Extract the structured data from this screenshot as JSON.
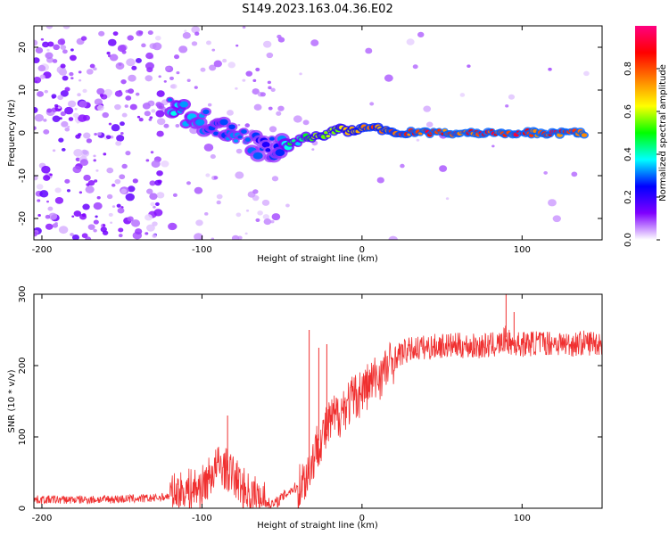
{
  "title": "S149.2023.163.04.36.E02",
  "chart_data": [
    {
      "type": "heatmap",
      "xlabel": "Height of straight line (km)",
      "ylabel": "Frequency (Hz)",
      "xlim": [
        -205,
        150
      ],
      "ylim": [
        -25,
        25
      ],
      "x_ticks": [
        -200,
        -100,
        0,
        100
      ],
      "y_ticks": [
        -20,
        -10,
        0,
        10,
        20
      ],
      "grid": false,
      "colorbar": {
        "label": "Normalized spectral amplitude",
        "range": [
          0,
          1
        ],
        "ticks": [
          0.0,
          0.2,
          0.4,
          0.6,
          0.8
        ],
        "colormap": [
          "#ffffff",
          "#7f00ff",
          "#0000ff",
          "#00ffff",
          "#00ff00",
          "#ffff00",
          "#ff8000",
          "#ff0000",
          "#ff0080"
        ]
      },
      "ridge_points": [
        {
          "x": -120,
          "y": 6,
          "amp": 0.35
        },
        {
          "x": -110,
          "y": 4,
          "amp": 0.35
        },
        {
          "x": -100,
          "y": 3,
          "amp": 0.3
        },
        {
          "x": -90,
          "y": 1,
          "amp": 0.3
        },
        {
          "x": -80,
          "y": 0,
          "amp": 0.3
        },
        {
          "x": -70,
          "y": -2,
          "amp": 0.3
        },
        {
          "x": -60,
          "y": -4,
          "amp": 0.25
        },
        {
          "x": -50,
          "y": -3,
          "amp": 0.3
        },
        {
          "x": -45,
          "y": -2,
          "amp": 0.45
        },
        {
          "x": -40,
          "y": -2,
          "amp": 0.4
        },
        {
          "x": -35,
          "y": -1,
          "amp": 0.45
        },
        {
          "x": -30,
          "y": -1,
          "amp": 0.55
        },
        {
          "x": -25,
          "y": -1,
          "amp": 0.6
        },
        {
          "x": -20,
          "y": 0,
          "amp": 0.6
        },
        {
          "x": -15,
          "y": 1,
          "amp": 0.6
        },
        {
          "x": -10,
          "y": 0.5,
          "amp": 0.65
        },
        {
          "x": -5,
          "y": 0.5,
          "amp": 0.7
        },
        {
          "x": 0,
          "y": 1,
          "amp": 0.75
        },
        {
          "x": 5,
          "y": 1,
          "amp": 0.8
        },
        {
          "x": 10,
          "y": 1,
          "amp": 0.75
        },
        {
          "x": 20,
          "y": 0,
          "amp": 0.8
        },
        {
          "x": 40,
          "y": 0,
          "amp": 0.85
        },
        {
          "x": 60,
          "y": 0,
          "amp": 0.85
        },
        {
          "x": 80,
          "y": 0,
          "amp": 0.85
        },
        {
          "x": 100,
          "y": 0,
          "amp": 0.85
        },
        {
          "x": 120,
          "y": 0,
          "amp": 0.85
        },
        {
          "x": 140,
          "y": 0,
          "amp": 0.85
        }
      ]
    },
    {
      "type": "line",
      "xlabel": "Height of straight line (km)",
      "ylabel": "SNR (10 * v/v)",
      "xlim": [
        -205,
        150
      ],
      "ylim": [
        0,
        300
      ],
      "x_ticks": [
        -200,
        -100,
        0,
        100
      ],
      "y_ticks": [
        0,
        100,
        200,
        300
      ],
      "grid": false,
      "series": [
        {
          "color": "#f03030",
          "x": [
            -205,
            -190,
            -170,
            -150,
            -130,
            -120,
            -110,
            -100,
            -95,
            -90,
            -85,
            -80,
            -75,
            -70,
            -65,
            -60,
            -55,
            -50,
            -45,
            -40,
            -36,
            -32,
            -29,
            -27,
            -25,
            -22,
            -20,
            -18,
            -15,
            -12,
            -10,
            -7,
            -5,
            -2,
            0,
            3,
            5,
            8,
            10,
            13,
            15,
            18,
            20,
            25,
            30,
            35,
            40,
            50,
            60,
            70,
            80,
            85,
            88,
            90,
            92,
            95,
            100,
            110,
            120,
            130,
            140,
            150
          ],
          "y": [
            12,
            12,
            12,
            13,
            14,
            17,
            25,
            30,
            45,
            60,
            55,
            45,
            30,
            20,
            15,
            8,
            5,
            15,
            25,
            30,
            40,
            60,
            80,
            95,
            100,
            110,
            120,
            125,
            130,
            140,
            145,
            150,
            155,
            160,
            165,
            170,
            175,
            180,
            185,
            190,
            195,
            202,
            210,
            218,
            222,
            225,
            225,
            228,
            228,
            227,
            228,
            230,
            232,
            240,
            232,
            230,
            230,
            232,
            232,
            230,
            232,
            232
          ],
          "spikes": [
            {
              "x": -84,
              "y": 130
            },
            {
              "x": -33,
              "y": 250
            },
            {
              "x": -27,
              "y": 225
            },
            {
              "x": -22,
              "y": 230
            },
            {
              "x": 90,
              "y": 300
            },
            {
              "x": 95,
              "y": 275
            }
          ]
        }
      ]
    }
  ]
}
